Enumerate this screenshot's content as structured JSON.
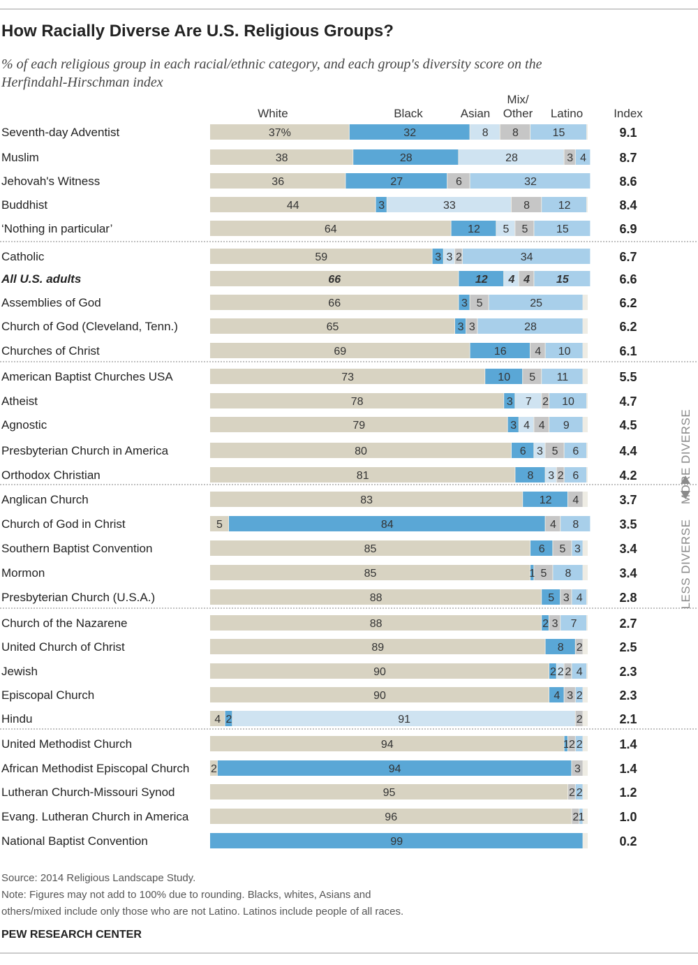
{
  "chart_data": {
    "type": "bar",
    "stacked": true,
    "orientation": "horizontal",
    "title": "How Racially Diverse Are U.S. Religious Groups?",
    "subtitle": "% of each religious group in each racial/ethnic category, and each group's diversity score on the Herfindahl-Hirschman index",
    "columns": {
      "white": "White",
      "black": "Black",
      "asian": "Asian",
      "mixother_line1": "Mix/",
      "mixother_line2": "Other",
      "latino": "Latino",
      "index": "Index"
    },
    "series_colors": {
      "white": "#d8d3c2",
      "black": "#5aa7d6",
      "asian": "#cfe3f1",
      "mixother": "#c6c6c6",
      "latino": "#a8cfea"
    },
    "rows": [
      {
        "label": "Seventh-day Adventist",
        "white": 37,
        "black": 32,
        "asian": 8,
        "mixother": 8,
        "latino": 15,
        "white_label": "37%",
        "index": "9.1"
      },
      {
        "label": "Muslim",
        "white": 38,
        "black": 28,
        "asian": 28,
        "mixother": 3,
        "latino": 4,
        "index": "8.7"
      },
      {
        "label": "Jehovah's Witness",
        "white": 36,
        "black": 27,
        "asian": 0,
        "mixother": 6,
        "latino": 32,
        "index": "8.6"
      },
      {
        "label": "Buddhist",
        "white": 44,
        "black": 3,
        "asian": 33,
        "mixother": 8,
        "latino": 12,
        "index": "8.4"
      },
      {
        "label": "‘Nothing in particular’",
        "white": 64,
        "black": 12,
        "asian": 5,
        "mixother": 5,
        "latino": 15,
        "index": "6.9"
      },
      {
        "label": "Catholic",
        "white": 59,
        "black": 3,
        "asian": 3,
        "mixother": 2,
        "latino": 34,
        "index": "6.7",
        "group_start": true
      },
      {
        "label": "All U.S. adults",
        "white": 66,
        "black": 12,
        "asian": 4,
        "mixother": 4,
        "latino": 15,
        "index": "6.6",
        "bold": true
      },
      {
        "label": "Assemblies of God",
        "white": 66,
        "black": 3,
        "asian": 0,
        "mixother": 5,
        "latino": 25,
        "index": "6.2"
      },
      {
        "label": "Church of God (Cleveland, Tenn.)",
        "white": 65,
        "black": 3,
        "asian": 0,
        "mixother": 3,
        "latino": 28,
        "index": "6.2"
      },
      {
        "label": "Churches of Christ",
        "white": 69,
        "black": 16,
        "asian": 0,
        "mixother": 4,
        "latino": 10,
        "index": "6.1"
      },
      {
        "label": "American Baptist Churches USA",
        "white": 73,
        "black": 10,
        "asian": 0,
        "mixother": 5,
        "latino": 11,
        "index": "5.5",
        "group_start": true
      },
      {
        "label": "Atheist",
        "white": 78,
        "black": 3,
        "asian": 7,
        "mixother": 2,
        "latino": 10,
        "index": "4.7"
      },
      {
        "label": "Agnostic",
        "white": 79,
        "black": 3,
        "asian": 4,
        "mixother": 4,
        "latino": 9,
        "index": "4.5"
      },
      {
        "label": "Presbyterian Church in America",
        "white": 80,
        "black": 6,
        "asian": 3,
        "mixother": 5,
        "latino": 6,
        "index": "4.4"
      },
      {
        "label": "Orthodox Christian",
        "white": 81,
        "black": 8,
        "asian": 3,
        "mixother": 2,
        "latino": 6,
        "index": "4.2"
      },
      {
        "label": "Anglican Church",
        "white": 83,
        "black": 12,
        "asian": 0,
        "mixother": 4,
        "latino": 0,
        "index": "3.7",
        "group_start": true
      },
      {
        "label": "Church of God in Christ",
        "white": 5,
        "black": 84,
        "asian": 0,
        "mixother": 4,
        "latino": 8,
        "index": "3.5"
      },
      {
        "label": "Southern Baptist Convention",
        "white": 85,
        "black": 6,
        "asian": 0,
        "mixother": 5,
        "latino": 3,
        "index": "3.4"
      },
      {
        "label": "Mormon",
        "white": 85,
        "black": 1,
        "asian": 0,
        "mixother": 5,
        "latino": 8,
        "index": "3.4"
      },
      {
        "label": "Presbyterian Church (U.S.A.)",
        "white": 88,
        "black": 5,
        "asian": 0,
        "mixother": 3,
        "latino": 4,
        "index": "2.8"
      },
      {
        "label": "Church of the Nazarene",
        "white": 88,
        "black": 2,
        "asian": 0,
        "mixother": 3,
        "latino": 7,
        "index": "2.7",
        "group_start": true
      },
      {
        "label": "United Church of Christ",
        "white": 89,
        "black": 8,
        "asian": 0,
        "mixother": 2,
        "latino": 0,
        "index": "2.5"
      },
      {
        "label": "Jewish",
        "white": 90,
        "black": 2,
        "asian": 2,
        "mixother": 2,
        "latino": 4,
        "index": "2.3"
      },
      {
        "label": "Episcopal Church",
        "white": 90,
        "black": 4,
        "asian": 0,
        "mixother": 3,
        "latino": 2,
        "index": "2.3"
      },
      {
        "label": "Hindu",
        "white": 4,
        "black": 2,
        "asian": 91,
        "mixother": 2,
        "latino": 0,
        "index": "2.1"
      },
      {
        "label": "United Methodist Church",
        "white": 94,
        "black": 1,
        "asian": 0,
        "mixother": 2,
        "latino": 2,
        "index": "1.4",
        "group_start": true
      },
      {
        "label": "African Methodist Episcopal Church",
        "white": 2,
        "black": 94,
        "asian": 0,
        "mixother": 3,
        "latino": 0,
        "index": "1.4"
      },
      {
        "label": "Lutheran Church-Missouri Synod",
        "white": 95,
        "black": 0,
        "asian": 0,
        "mixother": 2,
        "latino": 2,
        "index": "1.2"
      },
      {
        "label": "Evang. Lutheran Church in America",
        "white": 96,
        "black": 0,
        "asian": 0,
        "mixother": 2,
        "latino": 1,
        "index": "1.0"
      },
      {
        "label": "National Baptist Convention",
        "white": 0,
        "black": 99,
        "asian": 0,
        "mixother": 0,
        "latino": 0,
        "index": "0.2"
      }
    ],
    "side_labels": {
      "top": "MORE DIVERSE",
      "bottom": "LESS DIVERSE"
    },
    "source": "Source: 2014 Religious Landscape Study.",
    "note_line1": "Note: Figures may not add to 100% due to rounding. Blacks, whites, Asians and",
    "note_line2": "others/mixed include only those who are not Latino. Latinos include people of all races.",
    "brand": "PEW RESEARCH CENTER"
  }
}
